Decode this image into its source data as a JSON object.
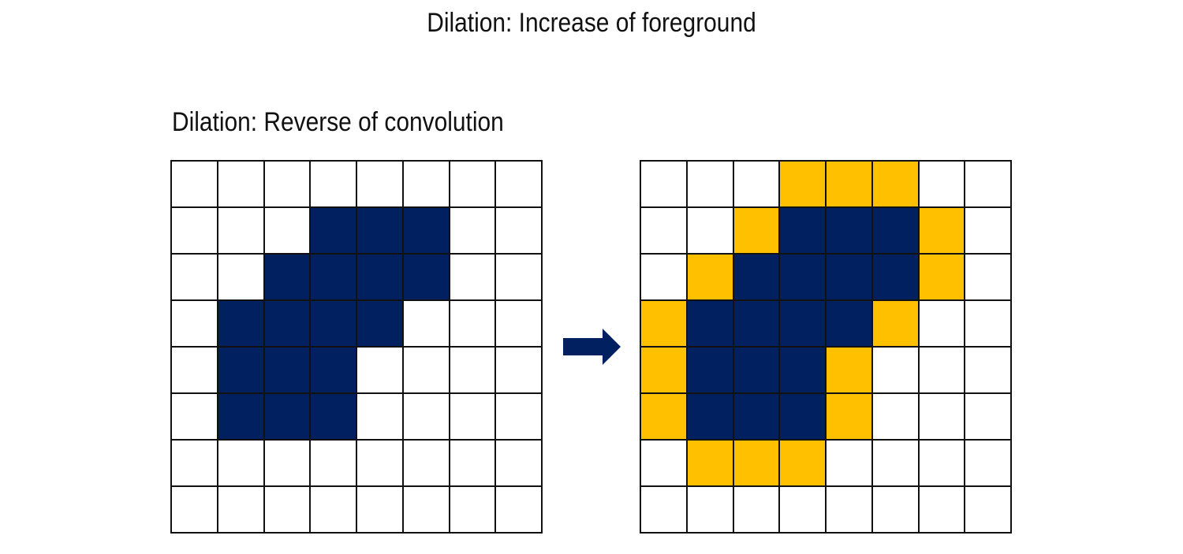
{
  "title": "Dilation: Increase of foreground",
  "subtitle": "Dilation: Reverse of convolution",
  "colors": {
    "background": "#FFFFFF",
    "foreground": "#002060",
    "added": "#FFC000",
    "gridline": "#111111"
  },
  "icons": {
    "arrow": "right-arrow-icon"
  },
  "legend_codes": {
    "0": "background",
    "1": "foreground",
    "2": "added"
  },
  "before_grid": [
    [
      0,
      0,
      0,
      0,
      0,
      0,
      0,
      0
    ],
    [
      0,
      0,
      0,
      1,
      1,
      1,
      0,
      0
    ],
    [
      0,
      0,
      1,
      1,
      1,
      1,
      0,
      0
    ],
    [
      0,
      1,
      1,
      1,
      1,
      0,
      0,
      0
    ],
    [
      0,
      1,
      1,
      1,
      0,
      0,
      0,
      0
    ],
    [
      0,
      1,
      1,
      1,
      0,
      0,
      0,
      0
    ],
    [
      0,
      0,
      0,
      0,
      0,
      0,
      0,
      0
    ],
    [
      0,
      0,
      0,
      0,
      0,
      0,
      0,
      0
    ]
  ],
  "after_grid": [
    [
      0,
      0,
      0,
      2,
      2,
      2,
      0,
      0
    ],
    [
      0,
      0,
      2,
      1,
      1,
      1,
      2,
      0
    ],
    [
      0,
      2,
      1,
      1,
      1,
      1,
      2,
      0
    ],
    [
      2,
      1,
      1,
      1,
      1,
      2,
      0,
      0
    ],
    [
      2,
      1,
      1,
      1,
      2,
      0,
      0,
      0
    ],
    [
      2,
      1,
      1,
      1,
      2,
      0,
      0,
      0
    ],
    [
      0,
      2,
      2,
      2,
      0,
      0,
      0,
      0
    ],
    [
      0,
      0,
      0,
      0,
      0,
      0,
      0,
      0
    ]
  ]
}
